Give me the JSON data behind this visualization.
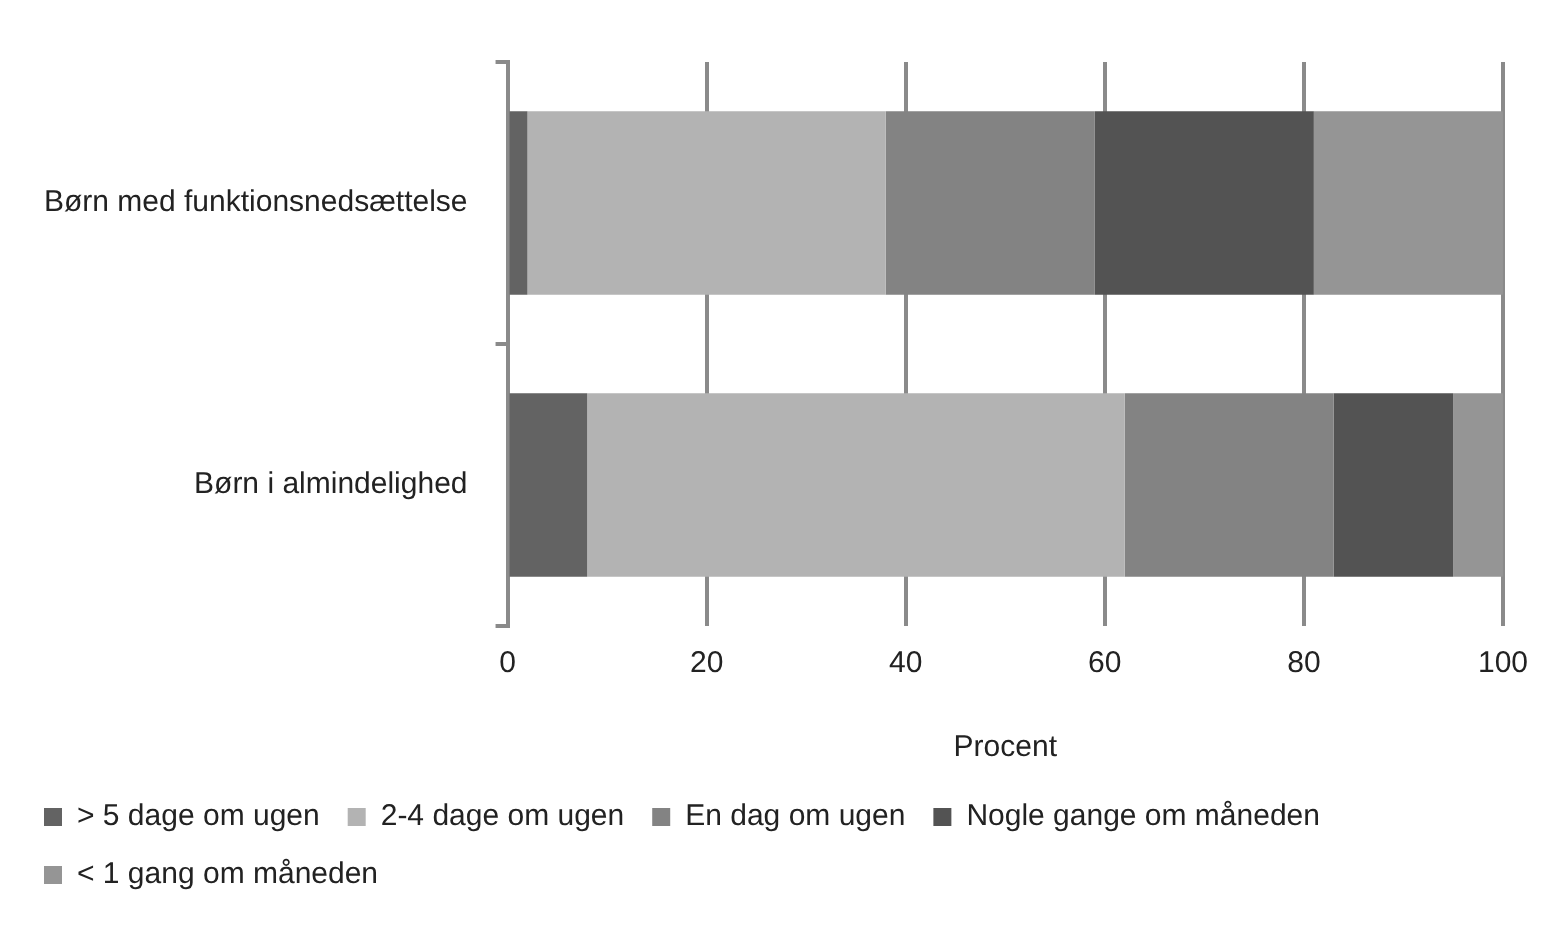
{
  "chart_data": {
    "type": "bar",
    "orientation": "horizontal",
    "stacked": true,
    "categories": [
      "Børn med funktionsnedsættelse",
      "Børn i almindelighed"
    ],
    "xlabel": "Procent",
    "xlim": [
      0,
      100
    ],
    "xticks": [
      0,
      20,
      40,
      60,
      80,
      100
    ],
    "grid": "x",
    "legend": "bottom",
    "series": [
      {
        "name": "> 5 dage om ugen",
        "color": "#636363",
        "values": [
          2,
          8
        ]
      },
      {
        "name": "2-4 dage om ugen",
        "color": "#b3b3b3",
        "values": [
          36,
          54
        ]
      },
      {
        "name": "En dag om ugen",
        "color": "#838383",
        "values": [
          21,
          21
        ]
      },
      {
        "name": "Nogle gange om måneden",
        "color": "#535353",
        "values": [
          22,
          12
        ]
      },
      {
        "name": "< 1 gang om måneden",
        "color": "#959595",
        "values": [
          19,
          5
        ]
      }
    ]
  }
}
